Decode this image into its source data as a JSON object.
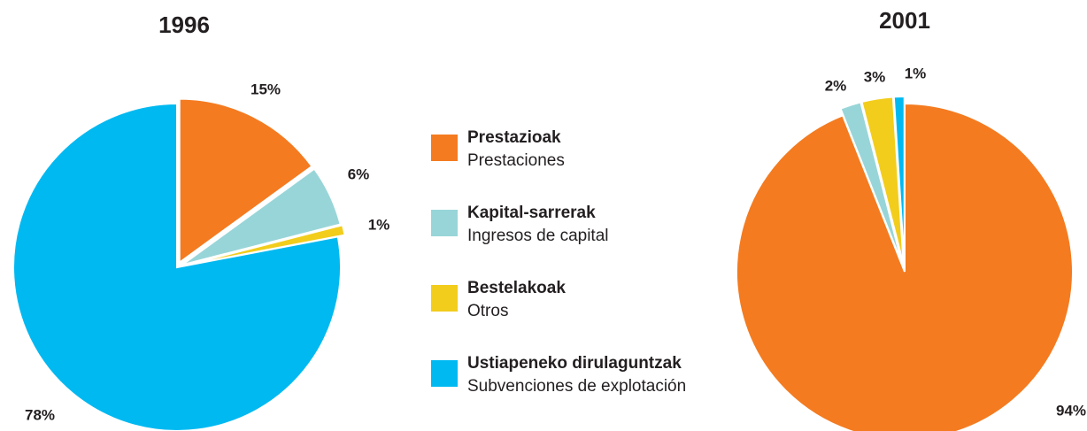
{
  "chart_data": [
    {
      "type": "pie",
      "title": "1996",
      "values": [
        15,
        6,
        1,
        78
      ],
      "value_labels": [
        "15%",
        "6%",
        "1%",
        "78%"
      ],
      "colors": [
        "#f47b20",
        "#98d5d8",
        "#f2cd1c",
        "#00b9f1"
      ]
    },
    {
      "type": "pie",
      "title": "2001",
      "values": [
        94,
        2,
        3,
        1
      ],
      "value_labels": [
        "94%",
        "2%",
        "3%",
        "1%"
      ],
      "colors": [
        "#f47b20",
        "#98d5d8",
        "#f2cd1c",
        "#00b9f1"
      ]
    }
  ],
  "legend": {
    "items": [
      {
        "label": "Prestazioak",
        "sublabel": "Prestaciones",
        "color": "#f47b20"
      },
      {
        "label": "Kapital-sarrerak",
        "sublabel": "Ingresos de capital",
        "color": "#98d5d8"
      },
      {
        "label": "Bestelakoak",
        "sublabel": "Otros",
        "color": "#f2cd1c"
      },
      {
        "label": "Ustiapeneko dirulaguntzak",
        "sublabel": "Subvenciones de explotación",
        "color": "#00b9f1"
      }
    ]
  }
}
